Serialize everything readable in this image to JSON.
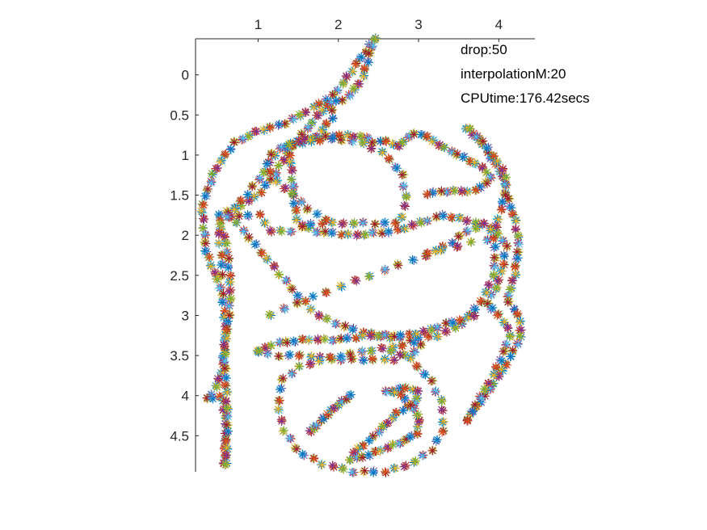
{
  "chart_data": {
    "type": "scatter",
    "marker": "asterisk",
    "xlim": [
      0.22,
      4.45
    ],
    "ylim": [
      -0.45,
      4.95
    ],
    "y_reversed": true,
    "x_axis_location": "top",
    "grid": false,
    "xticks": [
      1,
      2,
      3,
      4
    ],
    "xtick_labels": [
      "1",
      "2",
      "3",
      "4"
    ],
    "yticks": [
      0,
      0.5,
      1,
      1.5,
      2,
      2.5,
      3,
      3.5,
      4,
      4.5
    ],
    "ytick_labels": [
      "0",
      "0.5",
      "1",
      "1.5",
      "2",
      "2.5",
      "3",
      "3.5",
      "4",
      "4.5"
    ],
    "annotations": [
      "drop:50",
      "interpolationM:20",
      "CPUtime:176.42secs"
    ],
    "color_cycle": [
      "#0072BD",
      "#D95319",
      "#EDB120",
      "#7E2F8E",
      "#77AC30",
      "#4DBEEE",
      "#A2142F"
    ],
    "paths": [
      {
        "points": [
          [
            2.45,
            -0.45
          ],
          [
            2.2,
            -0.1
          ],
          [
            1.95,
            0.25
          ],
          [
            1.7,
            0.4
          ],
          [
            1.35,
            0.6
          ],
          [
            1.0,
            0.7
          ],
          [
            0.7,
            0.85
          ],
          [
            0.45,
            1.2
          ],
          [
            0.3,
            1.65
          ],
          [
            0.35,
            2.2
          ],
          [
            0.55,
            2.7
          ],
          [
            0.6,
            3.2
          ],
          [
            0.55,
            3.7
          ],
          [
            0.45,
            3.95
          ],
          [
            0.35,
            4.05
          ],
          [
            0.55,
            4.0
          ],
          [
            0.6,
            4.35
          ],
          [
            0.58,
            4.85
          ]
        ],
        "density": 70
      },
      {
        "points": [
          [
            2.45,
            -0.45
          ],
          [
            2.3,
            0.05
          ],
          [
            2.1,
            0.3
          ],
          [
            1.9,
            0.35
          ],
          [
            1.75,
            0.5
          ],
          [
            1.5,
            0.8
          ],
          [
            1.35,
            1.0
          ],
          [
            1.2,
            1.25
          ],
          [
            1.0,
            1.5
          ],
          [
            0.75,
            1.65
          ],
          [
            0.5,
            1.75
          ],
          [
            0.6,
            2.1
          ],
          [
            0.65,
            2.5
          ],
          [
            0.65,
            2.9
          ],
          [
            0.58,
            3.4
          ],
          [
            0.6,
            3.9
          ],
          [
            0.62,
            4.3
          ],
          [
            0.6,
            4.85
          ]
        ],
        "density": 64
      },
      {
        "points": [
          [
            1.9,
            0.35
          ],
          [
            1.95,
            0.5
          ],
          [
            1.75,
            0.75
          ],
          [
            1.55,
            0.85
          ],
          [
            1.35,
            0.9
          ],
          [
            1.4,
            1.0
          ],
          [
            1.45,
            1.6
          ],
          [
            1.5,
            1.85
          ],
          [
            1.7,
            1.95
          ],
          [
            2.2,
            2.0
          ],
          [
            2.7,
            1.95
          ],
          [
            3.0,
            1.85
          ],
          [
            3.3,
            1.75
          ],
          [
            3.55,
            1.8
          ],
          [
            3.9,
            1.9
          ]
        ],
        "density": 44
      },
      {
        "points": [
          [
            1.35,
            0.9
          ],
          [
            1.6,
            0.8
          ],
          [
            2.05,
            0.75
          ],
          [
            2.35,
            0.78
          ],
          [
            2.45,
            0.85
          ],
          [
            2.6,
            0.82
          ],
          [
            2.75,
            0.9
          ],
          [
            2.85,
            0.78
          ],
          [
            3.0,
            0.72
          ],
          [
            3.15,
            0.8
          ],
          [
            3.3,
            0.9
          ],
          [
            3.5,
            1.0
          ],
          [
            3.7,
            1.1
          ],
          [
            3.85,
            1.2
          ],
          [
            3.9,
            1.3
          ],
          [
            3.7,
            1.45
          ],
          [
            3.35,
            1.45
          ],
          [
            3.1,
            1.48
          ]
        ],
        "density": 44
      },
      {
        "points": [
          [
            3.6,
            0.68
          ],
          [
            3.75,
            0.8
          ],
          [
            3.85,
            0.95
          ],
          [
            3.95,
            1.1
          ],
          [
            4.05,
            1.25
          ],
          [
            4.1,
            1.5
          ],
          [
            4.2,
            1.8
          ],
          [
            4.25,
            2.1
          ],
          [
            4.2,
            2.5
          ],
          [
            4.1,
            2.8
          ],
          [
            4.25,
            3.0
          ],
          [
            4.28,
            3.25
          ],
          [
            4.1,
            3.6
          ],
          [
            3.9,
            3.9
          ],
          [
            3.75,
            4.1
          ],
          [
            3.6,
            4.3
          ]
        ],
        "density": 44
      },
      {
        "points": [
          [
            3.65,
            0.68
          ],
          [
            3.85,
            0.9
          ],
          [
            4.0,
            1.1
          ],
          [
            4.1,
            1.3
          ],
          [
            4.05,
            1.6
          ],
          [
            3.95,
            1.95
          ],
          [
            4.1,
            2.1
          ],
          [
            4.05,
            2.4
          ],
          [
            3.95,
            2.7
          ],
          [
            3.85,
            2.85
          ],
          [
            4.0,
            3.0
          ],
          [
            4.15,
            3.2
          ],
          [
            4.05,
            3.5
          ],
          [
            3.9,
            3.8
          ],
          [
            3.75,
            4.05
          ],
          [
            3.62,
            4.3
          ]
        ],
        "density": 40
      },
      {
        "points": [
          [
            1.2,
            1.0
          ],
          [
            1.05,
            1.25
          ],
          [
            0.85,
            1.5
          ],
          [
            0.65,
            1.75
          ],
          [
            0.95,
            2.1
          ],
          [
            1.2,
            2.4
          ],
          [
            1.45,
            2.7
          ],
          [
            1.75,
            3.0
          ],
          [
            2.1,
            3.15
          ],
          [
            2.5,
            3.25
          ],
          [
            2.9,
            3.3
          ],
          [
            3.25,
            3.25
          ],
          [
            3.55,
            3.1
          ],
          [
            3.8,
            2.8
          ],
          [
            3.95,
            2.45
          ],
          [
            3.95,
            2.05
          ],
          [
            3.85,
            1.85
          ],
          [
            3.6,
            1.95
          ],
          [
            3.4,
            2.1
          ],
          [
            3.1,
            2.25
          ]
        ],
        "density": 58
      },
      {
        "points": [
          [
            1.15,
            3.0
          ],
          [
            1.35,
            2.9
          ],
          [
            1.6,
            2.8
          ],
          [
            2.0,
            2.65
          ],
          [
            2.4,
            2.5
          ],
          [
            2.8,
            2.35
          ],
          [
            3.2,
            2.2
          ],
          [
            3.55,
            2.12
          ],
          [
            3.85,
            2.05
          ]
        ],
        "density": 16
      },
      {
        "points": [
          [
            0.55,
            2.5
          ],
          [
            0.55,
            2.3
          ],
          [
            0.5,
            1.95
          ],
          [
            0.55,
            1.8
          ],
          [
            0.75,
            1.75
          ],
          [
            0.9,
            1.75
          ],
          [
            1.05,
            1.75
          ],
          [
            1.15,
            1.95
          ],
          [
            1.4,
            1.95
          ],
          [
            1.7,
            1.85
          ],
          [
            2.0,
            1.85
          ],
          [
            2.4,
            1.85
          ],
          [
            2.75,
            1.85
          ],
          [
            2.85,
            1.6
          ],
          [
            2.8,
            1.25
          ],
          [
            2.6,
            1.0
          ],
          [
            2.3,
            0.85
          ],
          [
            2.0,
            0.8
          ],
          [
            1.7,
            0.82
          ],
          [
            1.4,
            0.85
          ],
          [
            1.2,
            0.95
          ],
          [
            1.1,
            1.1
          ],
          [
            1.2,
            1.3
          ],
          [
            1.45,
            1.5
          ],
          [
            1.65,
            1.7
          ],
          [
            1.85,
            1.8
          ]
        ],
        "density": 52
      },
      {
        "points": [
          [
            1.0,
            3.45
          ],
          [
            1.2,
            3.35
          ],
          [
            1.6,
            3.3
          ],
          [
            2.0,
            3.3
          ],
          [
            2.4,
            3.25
          ],
          [
            2.8,
            3.25
          ],
          [
            3.1,
            3.2
          ],
          [
            3.35,
            3.1
          ],
          [
            3.55,
            3.05
          ],
          [
            3.7,
            3.0
          ]
        ],
        "density": 30
      },
      {
        "points": [
          [
            1.0,
            3.45
          ],
          [
            1.2,
            3.5
          ],
          [
            1.6,
            3.5
          ],
          [
            2.0,
            3.55
          ],
          [
            2.4,
            3.55
          ],
          [
            2.7,
            3.55
          ],
          [
            2.95,
            3.45
          ],
          [
            3.05,
            3.35
          ],
          [
            2.9,
            3.35
          ],
          [
            2.65,
            3.4
          ],
          [
            2.3,
            3.45
          ],
          [
            1.8,
            3.55
          ],
          [
            1.5,
            3.65
          ],
          [
            1.3,
            3.8
          ],
          [
            1.25,
            4.1
          ],
          [
            1.3,
            4.4
          ],
          [
            1.5,
            4.7
          ],
          [
            1.8,
            4.85
          ],
          [
            2.2,
            4.95
          ],
          [
            2.6,
            4.95
          ],
          [
            2.9,
            4.85
          ],
          [
            3.15,
            4.7
          ],
          [
            3.3,
            4.45
          ],
          [
            3.3,
            4.1
          ],
          [
            3.15,
            3.8
          ],
          [
            3.0,
            3.65
          ],
          [
            2.85,
            3.5
          ],
          [
            2.65,
            3.45
          ]
        ],
        "density": 64
      },
      {
        "points": [
          [
            2.6,
            3.95
          ],
          [
            2.85,
            3.9
          ],
          [
            3.0,
            3.95
          ],
          [
            2.95,
            4.1
          ],
          [
            2.75,
            4.2
          ],
          [
            2.6,
            4.35
          ],
          [
            2.4,
            4.55
          ],
          [
            2.2,
            4.7
          ],
          [
            2.15,
            4.8
          ],
          [
            2.35,
            4.75
          ],
          [
            2.6,
            4.65
          ],
          [
            2.85,
            4.55
          ],
          [
            3.0,
            4.45
          ],
          [
            3.0,
            4.25
          ],
          [
            2.85,
            4.05
          ],
          [
            2.7,
            3.95
          ]
        ],
        "density": 40
      },
      {
        "points": [
          [
            1.65,
            4.45
          ],
          [
            1.8,
            4.3
          ],
          [
            1.95,
            4.15
          ],
          [
            2.15,
            4.0
          ]
        ],
        "density": 12
      }
    ]
  }
}
